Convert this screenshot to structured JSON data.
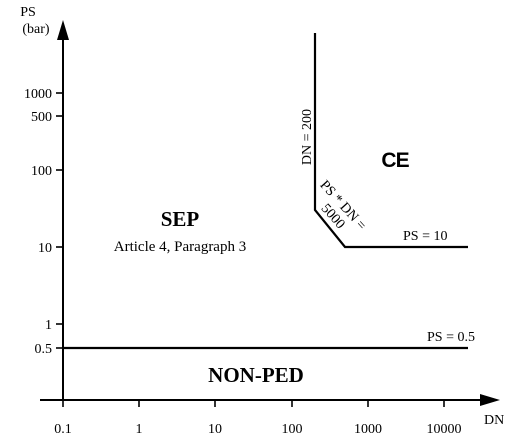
{
  "axes": {
    "y_title_line1": "PS",
    "y_title_line2": "(bar)",
    "x_title": "DN",
    "y_ticks": [
      "1000",
      "500",
      "100",
      "10",
      "1",
      "0.5"
    ],
    "x_ticks": [
      "0.1",
      "1",
      "10",
      "100",
      "1000",
      "10000"
    ]
  },
  "boundaries": {
    "dn_limit": "DN = 200",
    "product_limit_line1": "PS * DN =",
    "product_limit_line2": "5000",
    "ps10_limit": "PS = 10",
    "ps05_limit": "PS = 0.5"
  },
  "regions": {
    "sep_title": "SEP",
    "sep_subtitle": "Article 4, Paragraph 3",
    "nonped_title": "NON-PED",
    "ce_mark": "CE"
  }
}
